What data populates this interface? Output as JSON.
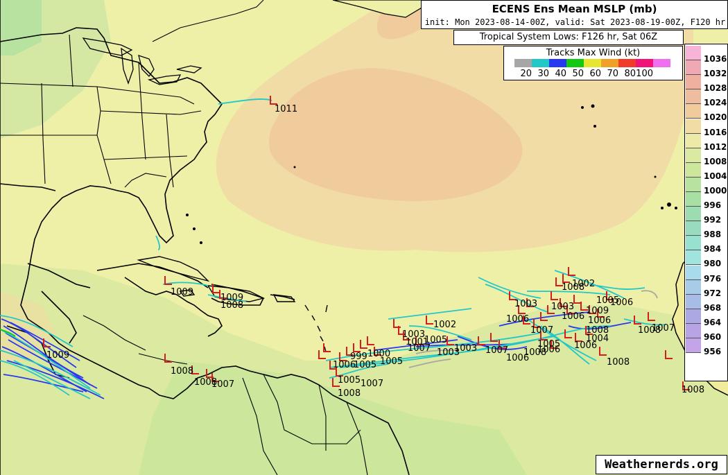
{
  "title": "ECENS Ens Mean MSLP (mb)",
  "subtitle": "init: Mon 2023-08-14-00Z, valid: Sat 2023-08-19-00Z, F120 hr",
  "lows_box": "Tropical System Lows: F126 hr, Sat 06Z",
  "wind_legend": {
    "title": "Tracks Max Wind (kt)",
    "levels": [
      "20",
      "30",
      "40",
      "50",
      "60",
      "70",
      "80",
      "100"
    ],
    "colors": [
      "#a6a6a6",
      "#20c8c8",
      "#2838f0",
      "#14c814",
      "#e6e632",
      "#f0a028",
      "#f03c28",
      "#f01478",
      "#f06ef0"
    ]
  },
  "pressure_scale": {
    "labels": [
      "1036",
      "1032",
      "1028",
      "1024",
      "1020",
      "1016",
      "1012",
      "1008",
      "1004",
      "1000",
      "996",
      "992",
      "988",
      "984",
      "980",
      "976",
      "972",
      "968",
      "964",
      "960",
      "956"
    ],
    "colors": [
      "#f8b4d8",
      "#f0a8b4",
      "#f0b0a0",
      "#f0bca0",
      "#f0cc9c",
      "#f0dca4",
      "#eceaa6",
      "#dce9a0",
      "#cce69c",
      "#b8e2a0",
      "#a8e0a4",
      "#9cdcb0",
      "#98dcc0",
      "#98e0d0",
      "#a0e4e0",
      "#a8dcec",
      "#a8cce8",
      "#a8bce8",
      "#aca8e4",
      "#b8a4e4",
      "#c4a4e8"
    ]
  },
  "pressure_labels": [
    "1011",
    "1009",
    "1009",
    "1008",
    "1009",
    "1008",
    "1008",
    "1007",
    "1007",
    "1002",
    "1003",
    "1001",
    "1007",
    "1005",
    "1000",
    "1003",
    "1003",
    "999",
    "1005",
    "1006",
    "1005",
    "1007",
    "1005",
    "1008",
    "1003",
    "1006",
    "1007",
    "1006",
    "1005",
    "1006",
    "1008",
    "1004",
    "1006",
    "1003",
    "1008",
    "1005",
    "1002",
    "1008",
    "1006",
    "1009",
    "1007",
    "1008",
    "1006",
    "1006",
    "1008",
    "1008"
  ],
  "credit": "Weathernerds.org"
}
